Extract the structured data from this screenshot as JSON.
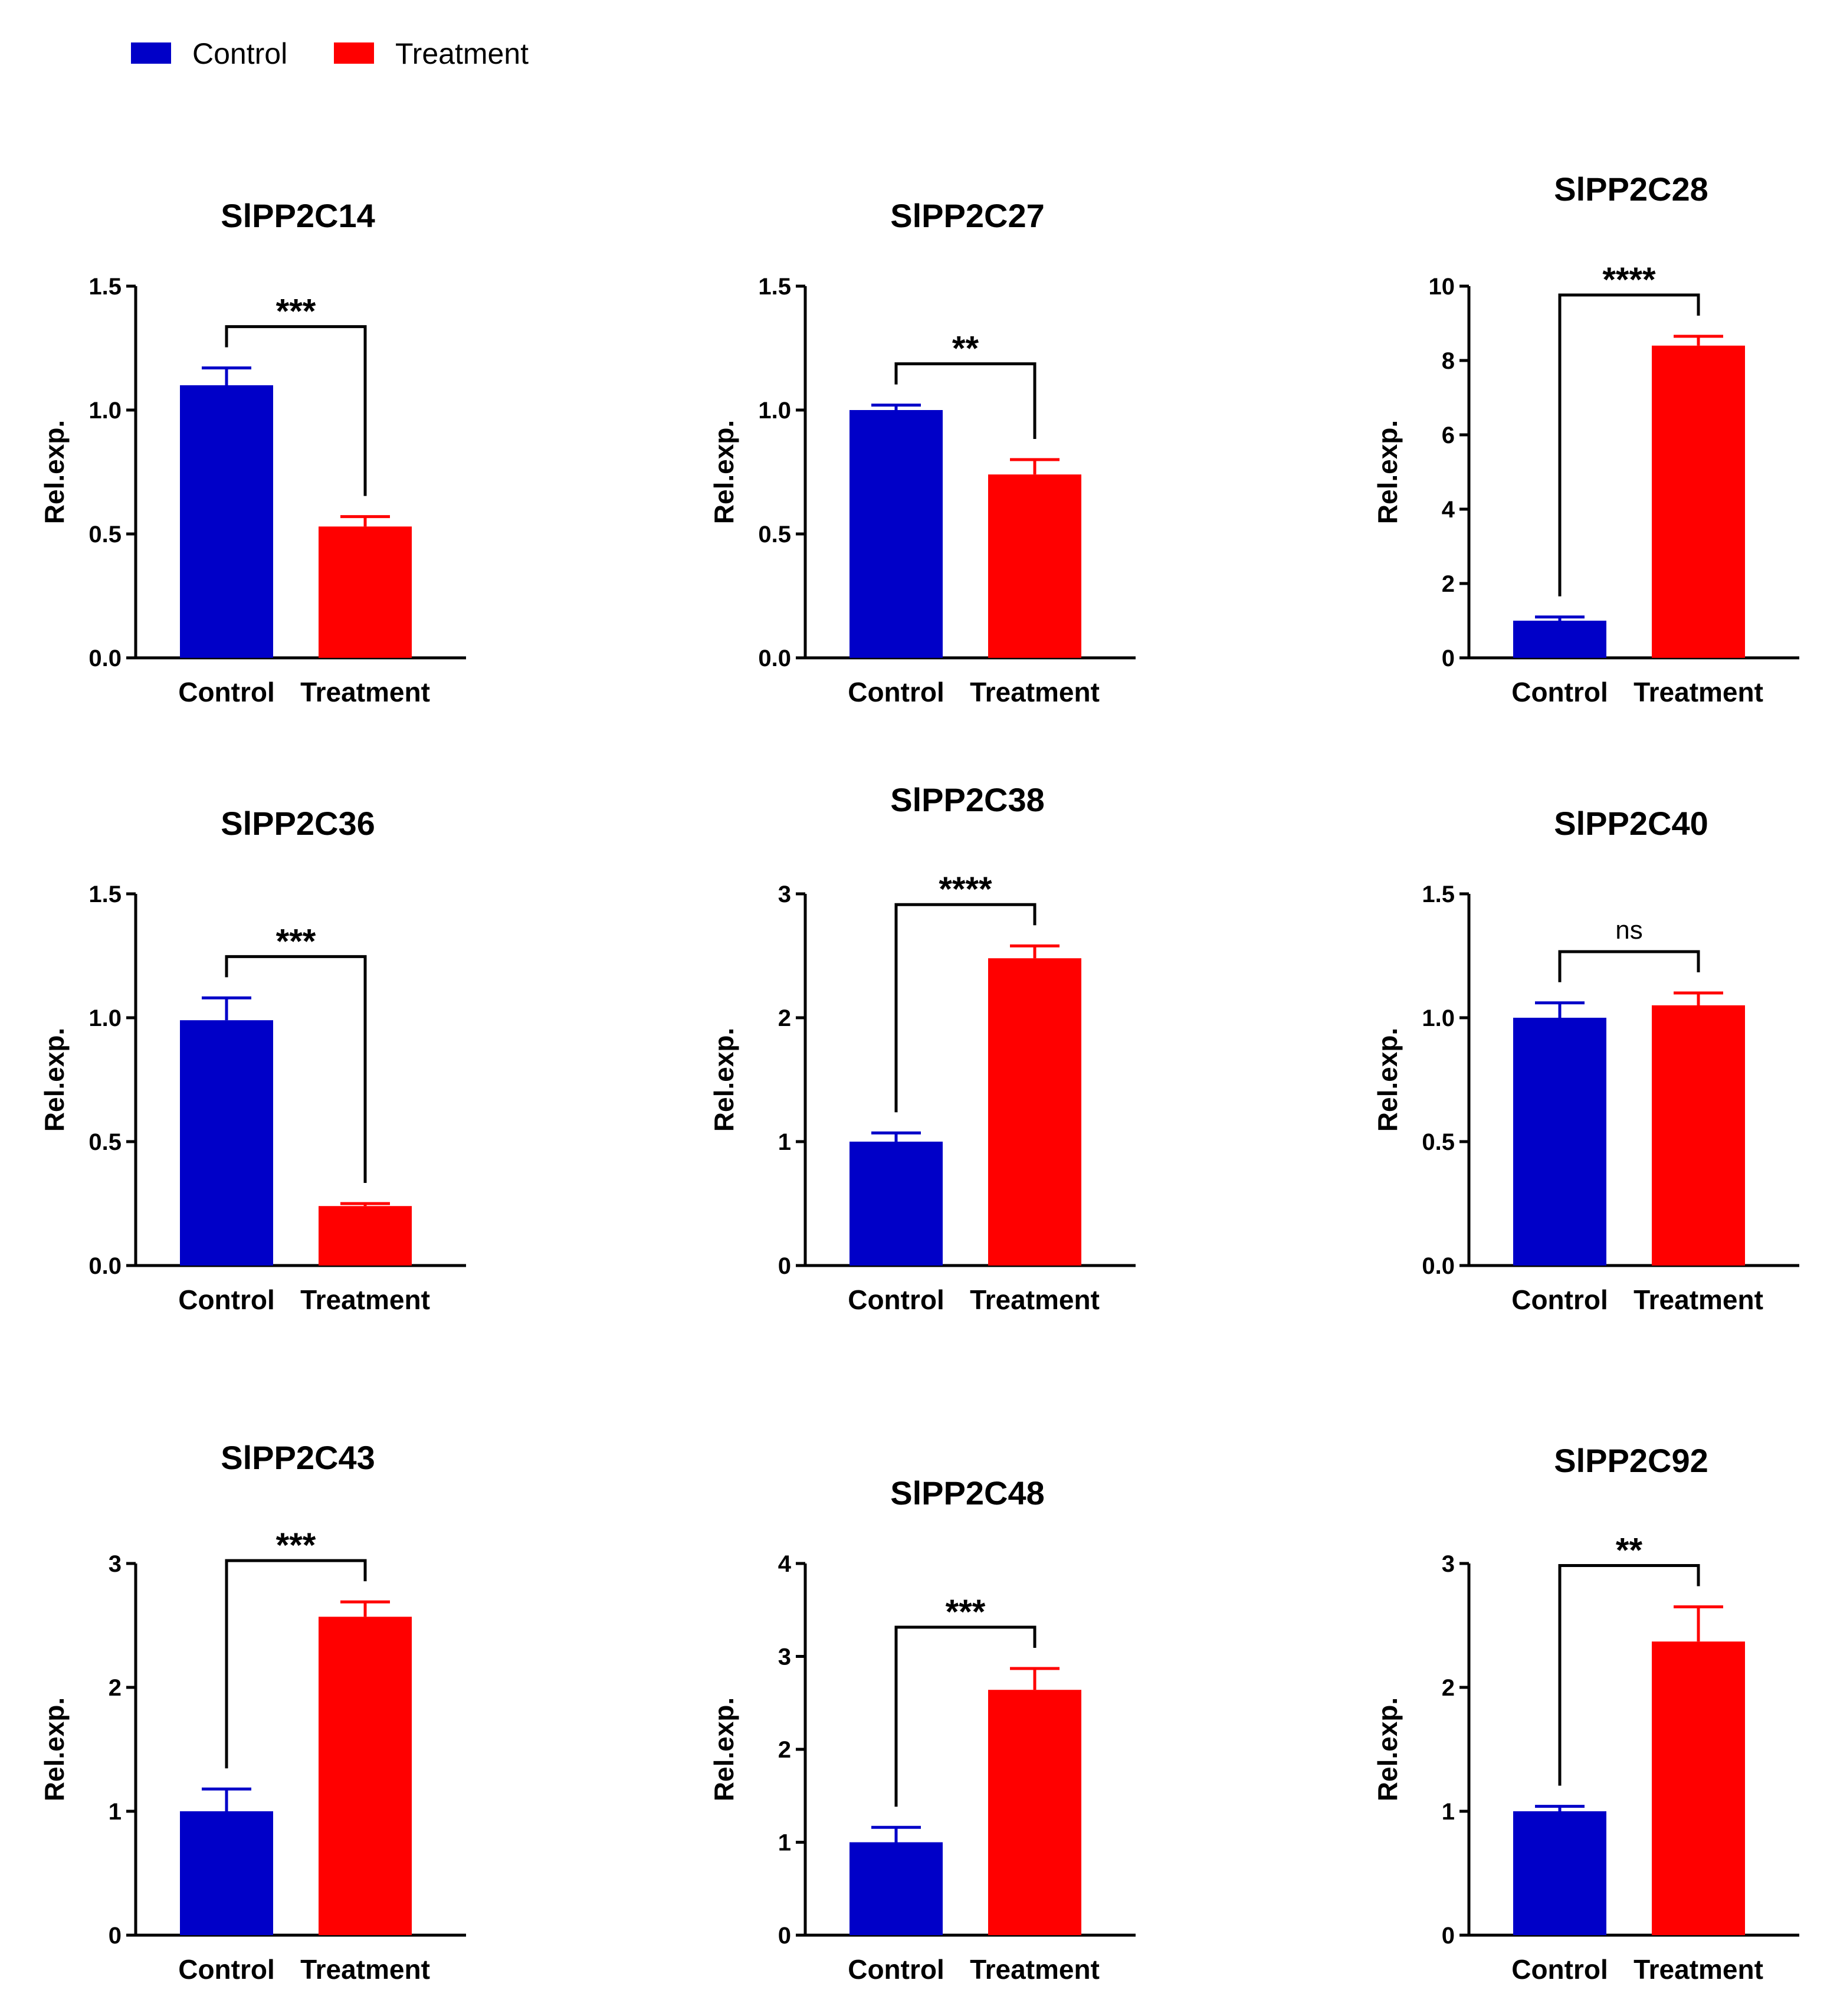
{
  "legend": [
    {
      "label": "Control",
      "color": "#0000C8"
    },
    {
      "label": "Treatment",
      "color": "#FF0000"
    }
  ],
  "chart_data": [
    {
      "type": "bar",
      "title": "SlPP2C14",
      "ylabel": "Rel.exp.",
      "categories": [
        "Control",
        "Treatment"
      ],
      "values": [
        1.1,
        0.53
      ],
      "errors": [
        0.07,
        0.04
      ],
      "ylim": [
        0,
        1.5
      ],
      "yticks": [
        "0.0",
        "0.5",
        "1.0",
        "1.5"
      ],
      "significance": "***"
    },
    {
      "type": "bar",
      "title": "SlPP2C27",
      "ylabel": "Rel.exp.",
      "categories": [
        "Control",
        "Treatment"
      ],
      "values": [
        1.0,
        0.74
      ],
      "errors": [
        0.02,
        0.06
      ],
      "ylim": [
        0,
        1.5
      ],
      "yticks": [
        "0.0",
        "0.5",
        "1.0",
        "1.5"
      ],
      "significance": "**"
    },
    {
      "type": "bar",
      "title": "SlPP2C28",
      "ylabel": "Rel.exp.",
      "categories": [
        "Control",
        "Treatment"
      ],
      "values": [
        1.0,
        8.4
      ],
      "errors": [
        0.1,
        0.25
      ],
      "ylim": [
        0,
        10
      ],
      "yticks": [
        "0",
        "2",
        "4",
        "6",
        "8",
        "10"
      ],
      "significance": "****"
    },
    {
      "type": "bar",
      "title": "SlPP2C36",
      "ylabel": "Rel.exp.",
      "categories": [
        "Control",
        "Treatment"
      ],
      "values": [
        0.99,
        0.24
      ],
      "errors": [
        0.09,
        0.01
      ],
      "ylim": [
        0,
        1.5
      ],
      "yticks": [
        "0.0",
        "0.5",
        "1.0",
        "1.5"
      ],
      "significance": "***"
    },
    {
      "type": "bar",
      "title": "SlPP2C38",
      "ylabel": "Rel.exp.",
      "categories": [
        "Control",
        "Treatment"
      ],
      "values": [
        1.0,
        2.48
      ],
      "errors": [
        0.07,
        0.1
      ],
      "ylim": [
        0,
        3
      ],
      "yticks": [
        "0",
        "1",
        "2",
        "3"
      ],
      "significance": "****"
    },
    {
      "type": "bar",
      "title": "SlPP2C40",
      "ylabel": "Rel.exp.",
      "categories": [
        "Control",
        "Treatment"
      ],
      "values": [
        1.0,
        1.05
      ],
      "errors": [
        0.06,
        0.05
      ],
      "ylim": [
        0,
        1.5
      ],
      "yticks": [
        "0.0",
        "0.5",
        "1.0",
        "1.5"
      ],
      "significance": "ns"
    },
    {
      "type": "bar",
      "title": "SlPP2C43",
      "ylabel": "Rel.exp.",
      "categories": [
        "Control",
        "Treatment"
      ],
      "values": [
        1.0,
        2.57
      ],
      "errors": [
        0.18,
        0.12
      ],
      "ylim": [
        0,
        3
      ],
      "yticks": [
        "0",
        "1",
        "2",
        "3"
      ],
      "significance": "***"
    },
    {
      "type": "bar",
      "title": "SlPP2C48",
      "ylabel": "Rel.exp.",
      "categories": [
        "Control",
        "Treatment"
      ],
      "values": [
        1.0,
        2.64
      ],
      "errors": [
        0.16,
        0.23
      ],
      "ylim": [
        0,
        4
      ],
      "yticks": [
        "0",
        "1",
        "2",
        "3",
        "4"
      ],
      "significance": "***"
    },
    {
      "type": "bar",
      "title": "SlPP2C92",
      "ylabel": "Rel.exp.",
      "categories": [
        "Control",
        "Treatment"
      ],
      "values": [
        1.0,
        2.37
      ],
      "errors": [
        0.04,
        0.28
      ],
      "ylim": [
        0,
        3
      ],
      "yticks": [
        "0",
        "1",
        "2",
        "3"
      ],
      "significance": "**"
    }
  ]
}
